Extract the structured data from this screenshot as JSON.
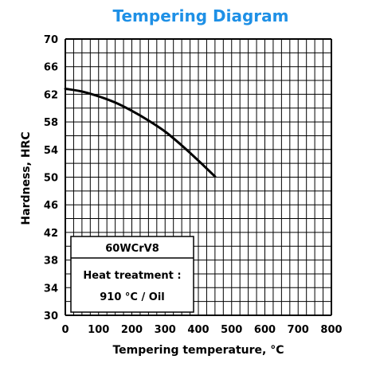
{
  "colors": {
    "title": "#1e90e6",
    "grid": "#000000",
    "curve": "#000000",
    "background": "#ffffff"
  },
  "chart_data": {
    "type": "line",
    "title": "Tempering Diagram",
    "xlabel": "Tempering temperature, °C",
    "ylabel": "Hardness, HRC",
    "xlim": [
      0,
      800
    ],
    "ylim": [
      30,
      70
    ],
    "xticks": [
      0,
      100,
      200,
      300,
      400,
      500,
      600,
      700,
      800
    ],
    "yticks": [
      30,
      34,
      38,
      42,
      46,
      50,
      54,
      58,
      62,
      66,
      70
    ],
    "grid": true,
    "series": [
      {
        "x": [
          0,
          50,
          100,
          150,
          200,
          250,
          300,
          350,
          400,
          450
        ],
        "y": [
          62.8,
          62.4,
          61.7,
          60.8,
          59.6,
          58.2,
          56.6,
          54.6,
          52.4,
          50.1
        ]
      }
    ],
    "annotation": {
      "grade": "60WCrV8",
      "line1": "Heat treatment :",
      "line2": "910 °C / Oil"
    }
  }
}
